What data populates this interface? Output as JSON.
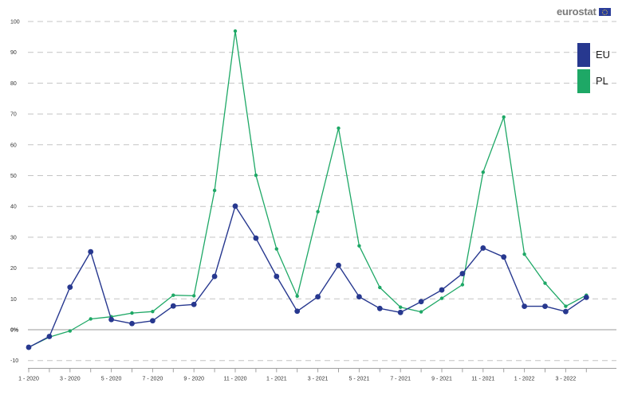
{
  "brand": {
    "logo_text": "eurostat"
  },
  "chart_data": {
    "type": "line",
    "x": [
      "1 - 2020",
      "2 - 2020",
      "3 - 2020",
      "4 - 2020",
      "5 - 2020",
      "6 - 2020",
      "7 - 2020",
      "8 - 2020",
      "9 - 2020",
      "10 - 2020",
      "11 - 2020",
      "12 - 2020",
      "1 - 2021",
      "2 - 2021",
      "3 - 2021",
      "4 - 2021",
      "5 - 2021",
      "6 - 2021",
      "7 - 2021",
      "8 - 2021",
      "9 - 2021",
      "10 - 2021",
      "11 - 2021",
      "12 - 2021",
      "1 - 2022",
      "2 - 2022",
      "3 - 2022",
      "4 - 2022"
    ],
    "xtick_labels": [
      "1 - 2020",
      "3 - 2020",
      "5 - 2020",
      "7 - 2020",
      "9 - 2020",
      "11 - 2020",
      "1 - 2021",
      "3 - 2021",
      "5 - 2021",
      "7 - 2021",
      "9 - 2021",
      "11 - 2021",
      "1 - 2022",
      "3 - 2022"
    ],
    "yticks": [
      -10,
      0,
      10,
      20,
      30,
      40,
      50,
      60,
      70,
      80,
      90,
      100
    ],
    "ytick_labels": [
      "-10",
      "0%",
      "10",
      "20",
      "30",
      "40",
      "50",
      "60",
      "70",
      "80",
      "90",
      "100"
    ],
    "ylim": [
      -12,
      103
    ],
    "grid": true,
    "legend_position": "top-right",
    "series": [
      {
        "name": "EU",
        "color": "#27388f",
        "values": [
          -5.7,
          -2.2,
          13.8,
          25.3,
          3.3,
          2,
          2.9,
          7.7,
          8.2,
          17.3,
          40.1,
          29.7,
          17.3,
          6,
          10.7,
          20.9,
          10.7,
          6.9,
          5.6,
          9.1,
          12.9,
          18.2,
          26.5,
          23.6,
          7.6,
          7.6,
          5.9,
          10.5
        ]
      },
      {
        "name": "PL",
        "color": "#1ea866",
        "values": [
          -5.7,
          -2.4,
          -0.4,
          3.5,
          4.2,
          5.4,
          5.9,
          11.2,
          11,
          45.2,
          96.9,
          50.1,
          26.2,
          10.9,
          38.3,
          65.4,
          27.2,
          13.7,
          7.3,
          5.8,
          10.2,
          14.6,
          51.1,
          69,
          24.5,
          15.1,
          7.6,
          11.2
        ]
      }
    ]
  }
}
